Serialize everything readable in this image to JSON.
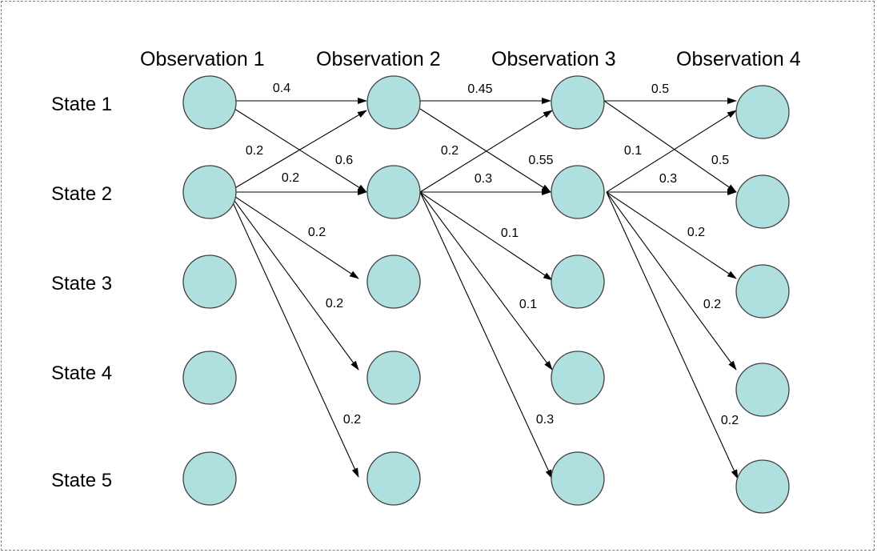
{
  "observations": [
    "Observation 1",
    "Observation 2",
    "Observation 3",
    "Observation 4"
  ],
  "states": [
    "State 1",
    "State 2",
    "State 3",
    "State 4",
    "State 5"
  ],
  "colors": {
    "node_fill": "#b0dfe0",
    "node_stroke": "#404040",
    "edge": "#000000",
    "frame": "#808080"
  },
  "transitions": [
    {
      "from": [
        0,
        0
      ],
      "to": [
        1,
        0
      ],
      "label": "0.4"
    },
    {
      "from": [
        0,
        0
      ],
      "to": [
        1,
        1
      ],
      "label": "0.6"
    },
    {
      "from": [
        0,
        1
      ],
      "to": [
        1,
        0
      ],
      "label": "0.2"
    },
    {
      "from": [
        0,
        1
      ],
      "to": [
        1,
        1
      ],
      "label": "0.2"
    },
    {
      "from": [
        0,
        1
      ],
      "to": [
        1,
        2
      ],
      "label": "0.2"
    },
    {
      "from": [
        0,
        1
      ],
      "to": [
        1,
        3
      ],
      "label": "0.2"
    },
    {
      "from": [
        0,
        1
      ],
      "to": [
        1,
        4
      ],
      "label": "0.2"
    },
    {
      "from": [
        1,
        0
      ],
      "to": [
        2,
        0
      ],
      "label": "0.45"
    },
    {
      "from": [
        1,
        0
      ],
      "to": [
        2,
        1
      ],
      "label": "0.55"
    },
    {
      "from": [
        1,
        1
      ],
      "to": [
        2,
        0
      ],
      "label": "0.2"
    },
    {
      "from": [
        1,
        1
      ],
      "to": [
        2,
        1
      ],
      "label": "0.3"
    },
    {
      "from": [
        1,
        1
      ],
      "to": [
        2,
        2
      ],
      "label": "0.1"
    },
    {
      "from": [
        1,
        1
      ],
      "to": [
        2,
        3
      ],
      "label": "0.1"
    },
    {
      "from": [
        1,
        1
      ],
      "to": [
        2,
        4
      ],
      "label": "0.3"
    },
    {
      "from": [
        2,
        0
      ],
      "to": [
        3,
        0
      ],
      "label": "0.5"
    },
    {
      "from": [
        2,
        0
      ],
      "to": [
        3,
        1
      ],
      "label": "0.5"
    },
    {
      "from": [
        2,
        1
      ],
      "to": [
        3,
        0
      ],
      "label": "0.1"
    },
    {
      "from": [
        2,
        1
      ],
      "to": [
        3,
        1
      ],
      "label": "0.3"
    },
    {
      "from": [
        2,
        1
      ],
      "to": [
        3,
        2
      ],
      "label": "0.2"
    },
    {
      "from": [
        2,
        1
      ],
      "to": [
        3,
        3
      ],
      "label": "0.2"
    },
    {
      "from": [
        2,
        1
      ],
      "to": [
        3,
        4
      ],
      "label": "0.2"
    }
  ]
}
